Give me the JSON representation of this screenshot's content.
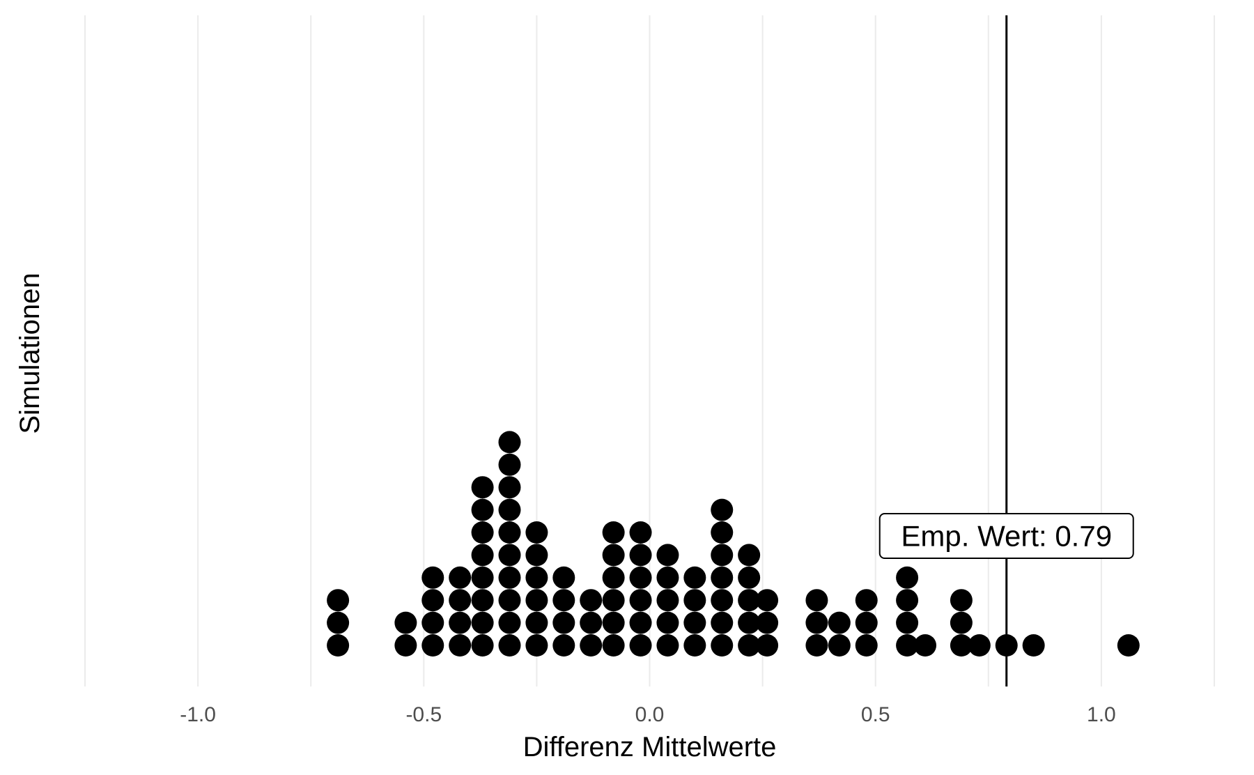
{
  "chart_data": {
    "type": "dotplot",
    "xlabel": "Differenz Mittelwerte",
    "ylabel": "Simulationen",
    "xlim": [
      -1.25,
      1.25
    ],
    "x_ticks": [
      -1.0,
      -0.5,
      0.0,
      0.5,
      1.0
    ],
    "x_tick_labels": [
      "-1.0",
      "-0.5",
      "0.0",
      "0.5",
      "1.0"
    ],
    "grid": "vertical",
    "point_color": "#000000",
    "stacks": [
      {
        "x": -0.69,
        "count": 3
      },
      {
        "x": -0.54,
        "count": 2
      },
      {
        "x": -0.48,
        "count": 4
      },
      {
        "x": -0.42,
        "count": 4
      },
      {
        "x": -0.37,
        "count": 8
      },
      {
        "x": -0.31,
        "count": 10
      },
      {
        "x": -0.25,
        "count": 6
      },
      {
        "x": -0.19,
        "count": 4
      },
      {
        "x": -0.13,
        "count": 3
      },
      {
        "x": -0.08,
        "count": 6
      },
      {
        "x": -0.02,
        "count": 6
      },
      {
        "x": 0.04,
        "count": 5
      },
      {
        "x": 0.1,
        "count": 4
      },
      {
        "x": 0.16,
        "count": 7
      },
      {
        "x": 0.22,
        "count": 5
      },
      {
        "x": 0.26,
        "count": 3
      },
      {
        "x": 0.37,
        "count": 3
      },
      {
        "x": 0.42,
        "count": 2
      },
      {
        "x": 0.48,
        "count": 3
      },
      {
        "x": 0.57,
        "count": 4
      },
      {
        "x": 0.61,
        "count": 1
      },
      {
        "x": 0.69,
        "count": 3
      },
      {
        "x": 0.73,
        "count": 1
      },
      {
        "x": 0.79,
        "count": 1
      },
      {
        "x": 0.85,
        "count": 1
      },
      {
        "x": 1.06,
        "count": 1
      }
    ],
    "empirical_value": 0.79,
    "annotation": "Emp. Wert: 0.79"
  }
}
